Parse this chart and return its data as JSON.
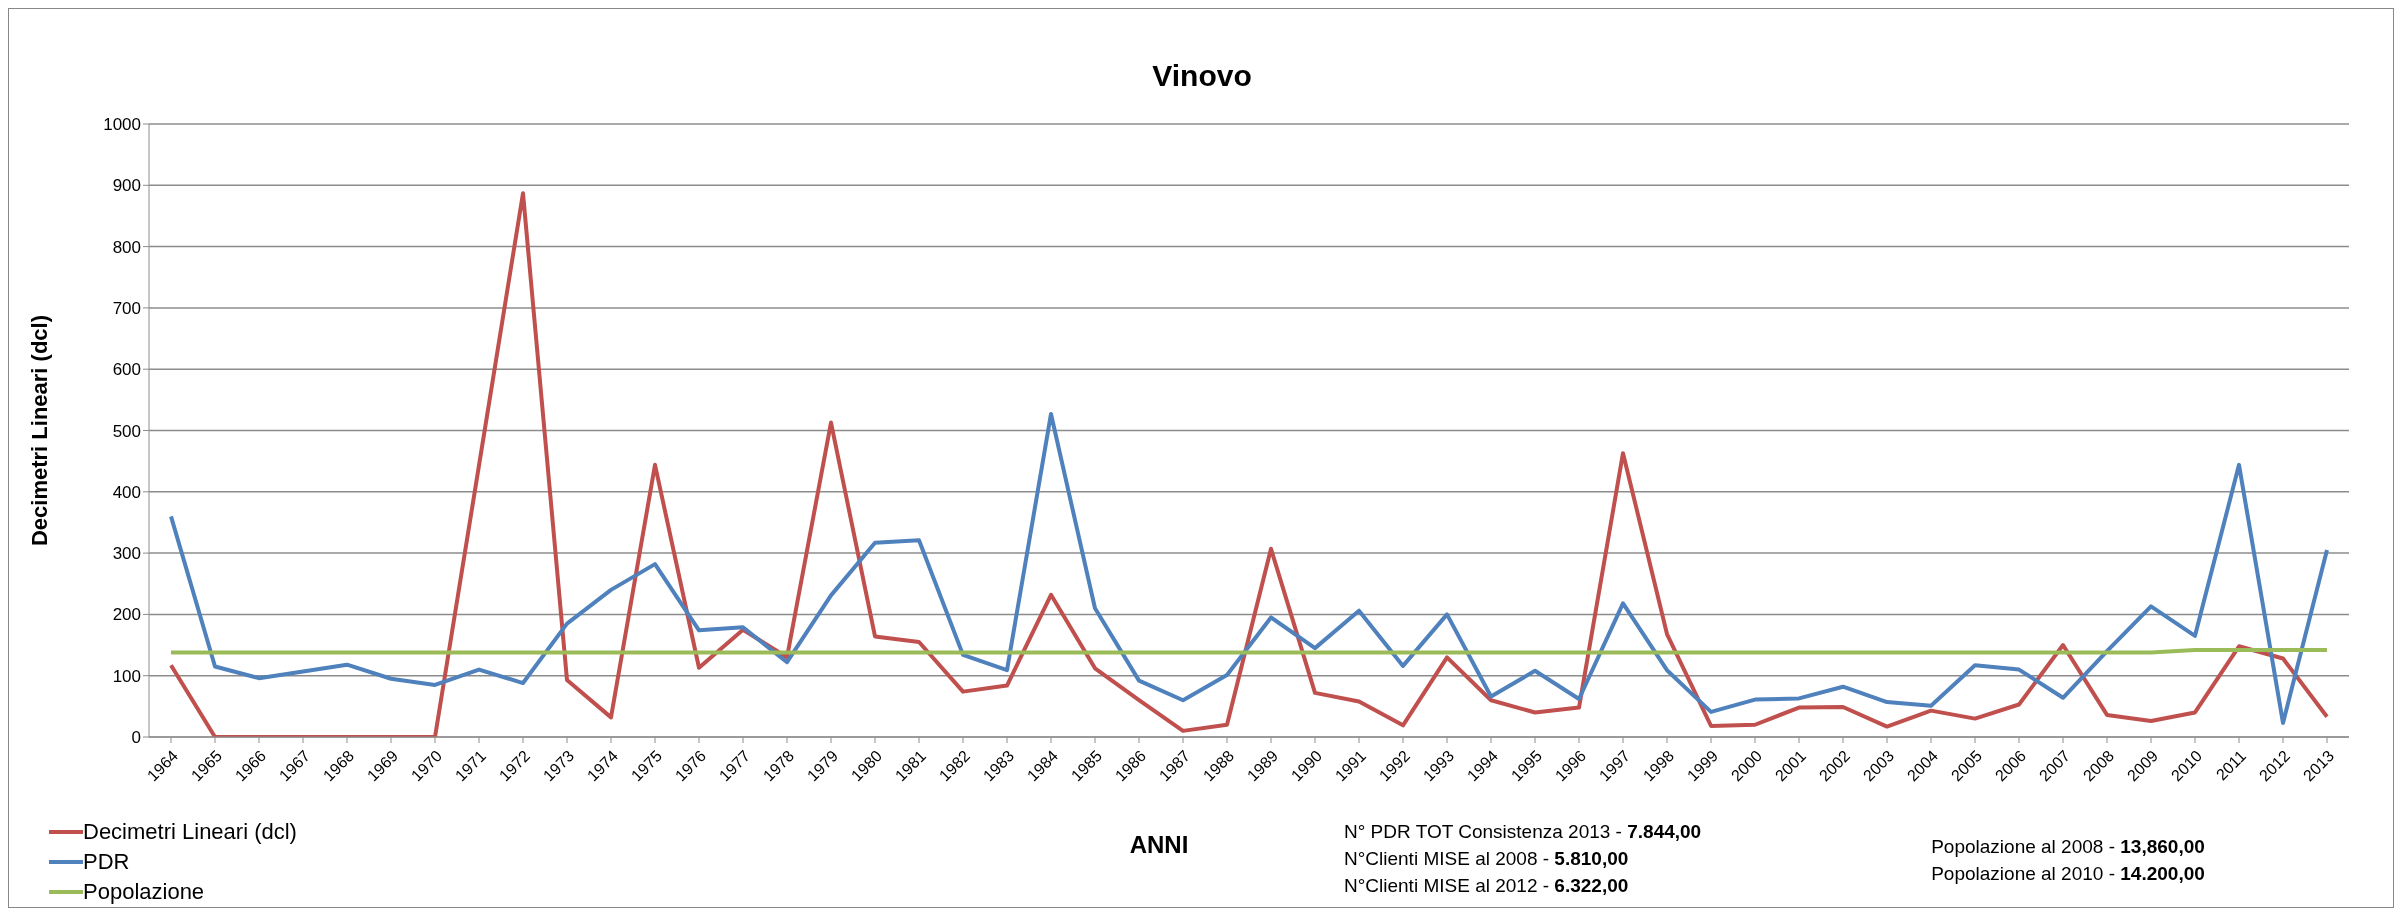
{
  "chart_data": {
    "type": "line",
    "title": "Vinovo",
    "xlabel": "ANNI",
    "ylabel": "Decimetri Lineari (dcl)",
    "categories": [
      "1964",
      "1965",
      "1966",
      "1967",
      "1968",
      "1969",
      "1970",
      "1971",
      "1972",
      "1973",
      "1974",
      "1975",
      "1976",
      "1977",
      "1978",
      "1979",
      "1980",
      "1981",
      "1982",
      "1983",
      "1984",
      "1985",
      "1986",
      "1987",
      "1988",
      "1989",
      "1990",
      "1991",
      "1992",
      "1993",
      "1994",
      "1995",
      "1996",
      "1997",
      "1998",
      "1999",
      "2000",
      "2001",
      "2002",
      "2003",
      "2004",
      "2005",
      "2006",
      "2007",
      "2008",
      "2009",
      "2010",
      "2011",
      "2012",
      "2013"
    ],
    "series": [
      {
        "name": "Decimetri Lineari (dcl)",
        "color": "#c0504d",
        "values": [
          117,
          0,
          0,
          0,
          0,
          0,
          0,
          443,
          887,
          93,
          32,
          444,
          113,
          175,
          130,
          513,
          164,
          155,
          74,
          84,
          232,
          112,
          60,
          10,
          20,
          307,
          72,
          58,
          19,
          130,
          60,
          40,
          48,
          463,
          168,
          18,
          20,
          48,
          49,
          17,
          43,
          30,
          53,
          150,
          36,
          26,
          40,
          148,
          128,
          33
        ]
      },
      {
        "name": "PDR",
        "color": "#4f81bd",
        "values": [
          360,
          115,
          96,
          107,
          118,
          95,
          85,
          110,
          88,
          185,
          240,
          282,
          174,
          179,
          122,
          231,
          317,
          321,
          134,
          109,
          527,
          210,
          92,
          60,
          101,
          195,
          145,
          206,
          116,
          200,
          66,
          108,
          62,
          218,
          109,
          41,
          61,
          63,
          82,
          57,
          51,
          117,
          110,
          64,
          140,
          213,
          165,
          444,
          23,
          305
        ]
      },
      {
        "name": "Popolazione",
        "color": "#9bbb59",
        "values": [
          138,
          138,
          138,
          138,
          138,
          138,
          138,
          138,
          138,
          138,
          138,
          138,
          138,
          138,
          138,
          138,
          138,
          138,
          138,
          138,
          138,
          138,
          138,
          138,
          138,
          138,
          138,
          138,
          138,
          138,
          138,
          138,
          138,
          138,
          138,
          138,
          138,
          138,
          138,
          138,
          138,
          138,
          138,
          138,
          138,
          138,
          142,
          142,
          142,
          142
        ]
      }
    ],
    "ylim": [
      0,
      1000
    ],
    "yticks": [
      0,
      100,
      200,
      300,
      400,
      500,
      600,
      700,
      800,
      900,
      1000
    ],
    "grid": "y",
    "legend": "bottom left",
    "marker": "none",
    "line_style": "solid",
    "annotations": [
      "N° PDR TOT Consistenza 2013 - 7.844,00",
      "N°Clienti MISE al 2008 - 5.810,00",
      "N°Clienti MISE al 2012 - 6.322,00",
      "Popolazione al 2008 - 13,860,00",
      "Popolazione al 2010 - 14.200,00"
    ]
  }
}
